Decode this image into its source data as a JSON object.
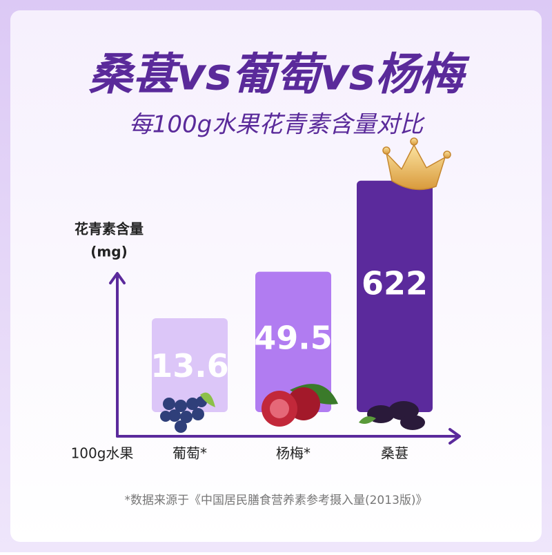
{
  "chart_data": {
    "type": "bar",
    "title": "桑葚vs葡萄vs杨梅",
    "subtitle": "每100g水果花青素含量对比",
    "y_label": [
      "花青素含量",
      "(mg)"
    ],
    "x_label": "100g水果",
    "categories": [
      "葡萄*",
      "杨梅*",
      "桑葚"
    ],
    "values": [
      13.6,
      49.5,
      622
    ],
    "colors": [
      "#dcc6f8",
      "#b17cf1",
      "#5b2a9c"
    ],
    "log_scale": true,
    "ylim": [
      1,
      1000
    ],
    "footnote": "*数据来源于《中国居民膳食营养素参考摄入量(2013版)》"
  }
}
